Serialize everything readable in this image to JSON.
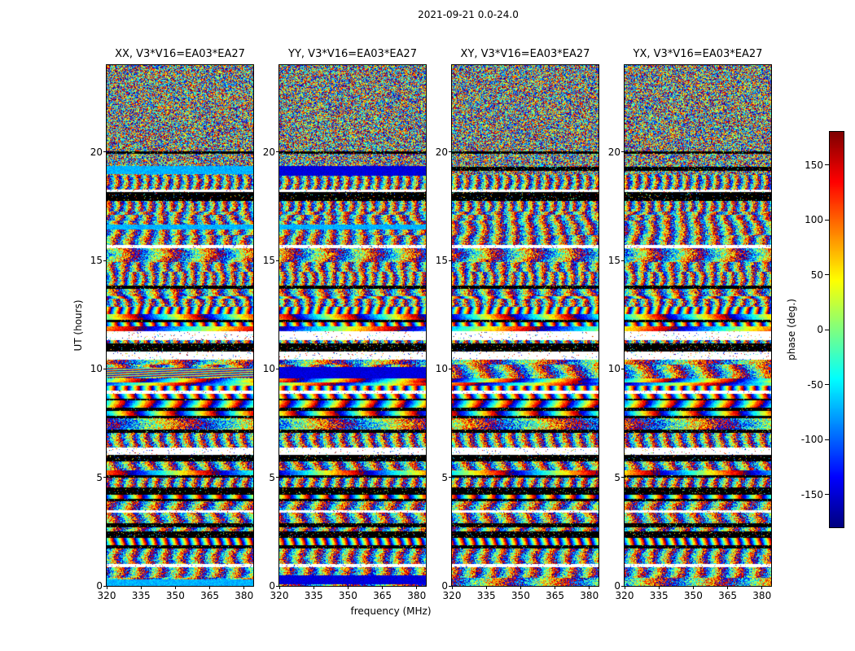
{
  "figure": {
    "title": "2021-09-21 0.0-24.0"
  },
  "panels": [
    {
      "pol": "XX",
      "title": "XX, V3*V16=EA03*EA27"
    },
    {
      "pol": "YY",
      "title": "YY, V3*V16=EA03*EA27"
    },
    {
      "pol": "XY",
      "title": "XY, V3*V16=EA03*EA27"
    },
    {
      "pol": "YX",
      "title": "YX, V3*V16=EA03*EA27"
    }
  ],
  "axes": {
    "xlabel": "frequency (MHz)",
    "ylabel": "UT (hours)",
    "x_ticks": [
      "320",
      "335",
      "350",
      "365",
      "380"
    ],
    "y_ticks": [
      "0",
      "5",
      "10",
      "15",
      "20"
    ]
  },
  "colorbar": {
    "label": "phase (deg.)",
    "ticks": [
      "150",
      "100",
      "50",
      "0",
      "-50",
      "-100",
      "-150"
    ]
  },
  "chart_data": {
    "type": "heatmap",
    "layout": "four vertical waterfall panels (one per polarization product) plus a shared jet colorbar on the right",
    "title": "2021-09-21 0.0-24.0",
    "panel_titles": [
      "XX, V3*V16=EA03*EA27",
      "YY, V3*V16=EA03*EA27",
      "XY, V3*V16=EA03*EA27",
      "YX, V3*V16=EA03*EA27"
    ],
    "xlabel": "frequency (MHz)",
    "x_range": [
      320,
      384
    ],
    "x_ticks": [
      320,
      335,
      350,
      365,
      380
    ],
    "ylabel": "UT (hours)",
    "y_range": [
      0,
      24
    ],
    "y_ticks": [
      0,
      5,
      10,
      15,
      20
    ],
    "value_label": "phase (deg.)",
    "value_range": [
      -180,
      180
    ],
    "colorbar_ticks": [
      150,
      100,
      50,
      0,
      -50,
      -100,
      -150
    ],
    "colormap": "jet",
    "content_summary": "Interferometric visibility phase vs frequency and UT for baseline V3*V16 (EA03*EA27): dense random phase noise above ~19h UT, below that horizontally banded noise with black flagged rows, white data gaps and occasional coherent colored (cyan/blue/rainbow) bands",
    "render_seed": 20210921,
    "features": [
      {
        "t0": 19.0,
        "t1": 19.35,
        "kind": "cyan",
        "panels": [
          0
        ]
      },
      {
        "t0": 18.95,
        "t1": 19.35,
        "kind": "blue",
        "panels": [
          1
        ]
      },
      {
        "t0": 19.15,
        "t1": 19.3,
        "kind": "black",
        "panels": [
          2,
          3
        ]
      },
      {
        "t0": 16.45,
        "t1": 16.65,
        "kind": "cyan",
        "panels": [
          0,
          1
        ]
      },
      {
        "t0": 11.35,
        "t1": 11.75,
        "kind": "white",
        "panels": [
          0,
          1,
          2,
          3
        ]
      },
      {
        "t0": 10.45,
        "t1": 10.7,
        "kind": "white",
        "panels": [
          0,
          1,
          2,
          3
        ]
      },
      {
        "t0": 9.65,
        "t1": 10.05,
        "kind": "rainbow",
        "panels": [
          0
        ]
      },
      {
        "t0": 9.6,
        "t1": 10.1,
        "kind": "blue",
        "panels": [
          1
        ]
      },
      {
        "t0": 4.25,
        "t1": 4.55,
        "kind": "black",
        "panels": [
          0,
          1,
          2,
          3
        ]
      },
      {
        "t0": 0.0,
        "t1": 0.3,
        "kind": "cyan",
        "panels": [
          0
        ]
      },
      {
        "t0": 0.1,
        "t1": 0.5,
        "kind": "blue",
        "panels": [
          1
        ]
      }
    ]
  }
}
